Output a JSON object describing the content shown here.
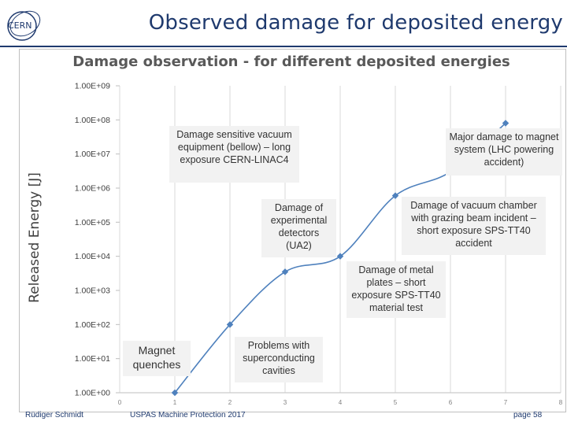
{
  "slide": {
    "title": "Observed damage for deposited energy",
    "logo_text": "CERN",
    "colors": {
      "title": "#1f3a6e",
      "line": "#4f81bd",
      "marker": "#4f81bd",
      "annotation_bg": "#f2f2f2"
    }
  },
  "chart_data": {
    "type": "line",
    "title": "Damage observation - for different deposited energies",
    "xlabel": "",
    "ylabel": "Released Energy [J]",
    "xlim": [
      0,
      8
    ],
    "x_ticks": [
      "0",
      "1",
      "2",
      "3",
      "4",
      "5",
      "6",
      "7",
      "8"
    ],
    "yscale": "log",
    "ylim": [
      1,
      1000000000
    ],
    "y_ticks": [
      "1.00E+00",
      "1.00E+01",
      "1.00E+02",
      "1.00E+03",
      "1.00E+04",
      "1.00E+05",
      "1.00E+06",
      "1.00E+07",
      "1.00E+08",
      "1.00E+09"
    ],
    "grid": "vertical",
    "legend": "none",
    "series": [
      {
        "x": [
          1,
          2,
          3,
          4,
          5,
          6,
          7
        ],
        "y": [
          1,
          100,
          3500,
          10000,
          600000,
          3000000,
          80000000
        ]
      }
    ],
    "annotations": [
      {
        "id": "magnet-quenches",
        "text": "Magnet quenches"
      },
      {
        "id": "superconducting-cavities",
        "text": "Problems with superconducting cavities"
      },
      {
        "id": "vacuum-equipment",
        "text": "Damage sensitive vacuum equipment (bellow) – long exposure CERN-LINAC4"
      },
      {
        "id": "experimental-detectors",
        "text": "Damage of experimental detectors (UA2)"
      },
      {
        "id": "metal-plates",
        "text": "Damage of metal plates – short exposure SPS-TT40 material test"
      },
      {
        "id": "vacuum-chamber",
        "text": "Damage of vacuum chamber with grazing beam incident – short exposure SPS-TT40 accident"
      },
      {
        "id": "magnet-system",
        "text": "Major damage to magnet system (LHC powering accident)"
      }
    ]
  },
  "footer": {
    "author": "Rüdiger Schmidt",
    "event": "USPAS Machine Protection 2017",
    "page": "page 58"
  }
}
